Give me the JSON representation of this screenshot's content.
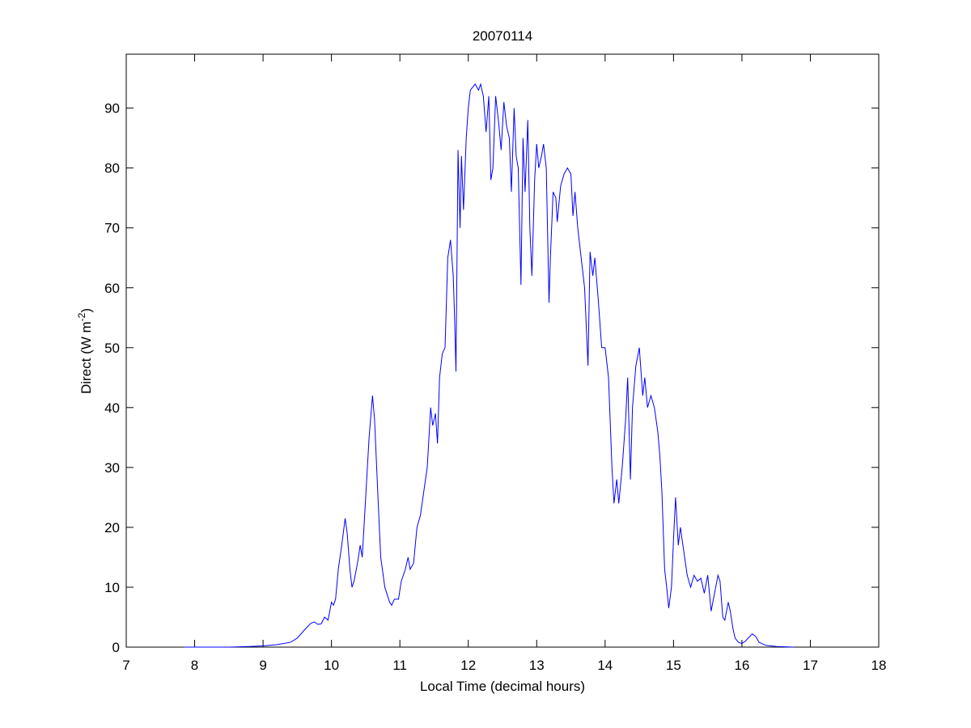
{
  "chart_data": {
    "type": "line",
    "title": "20070114",
    "xlabel": "Local Time (decimal hours)",
    "ylabel": {
      "text": "Direct (W m",
      "superscript": "-2",
      "suffix": ")"
    },
    "xlim": [
      7,
      18
    ],
    "xticks": [
      7,
      8,
      9,
      10,
      11,
      12,
      13,
      14,
      15,
      16,
      17,
      18
    ],
    "ylim": [
      0,
      99
    ],
    "yticks": [
      0,
      10,
      20,
      30,
      40,
      50,
      60,
      70,
      80,
      90
    ],
    "grid": false,
    "series": [
      {
        "color": "#0000ff",
        "x": [
          7.85,
          8.0,
          8.5,
          8.8,
          9.0,
          9.2,
          9.4,
          9.5,
          9.6,
          9.7,
          9.75,
          9.8,
          9.85,
          9.9,
          9.95,
          10.0,
          10.03,
          10.06,
          10.1,
          10.15,
          10.2,
          10.23,
          10.27,
          10.3,
          10.33,
          10.38,
          10.42,
          10.45,
          10.5,
          10.55,
          10.6,
          10.63,
          10.68,
          10.72,
          10.78,
          10.85,
          10.88,
          10.92,
          10.98,
          11.02,
          11.08,
          11.12,
          11.15,
          11.2,
          11.25,
          11.3,
          11.35,
          11.4,
          11.45,
          11.48,
          11.52,
          11.55,
          11.58,
          11.62,
          11.66,
          11.7,
          11.74,
          11.78,
          11.8,
          11.82,
          11.85,
          11.88,
          11.9,
          11.93,
          11.97,
          12.0,
          12.03,
          12.1,
          12.15,
          12.18,
          12.22,
          12.26,
          12.3,
          12.33,
          12.36,
          12.4,
          12.44,
          12.48,
          12.52,
          12.56,
          12.6,
          12.63,
          12.67,
          12.7,
          12.73,
          12.77,
          12.8,
          12.83,
          12.87,
          12.9,
          12.93,
          12.97,
          13.0,
          13.03,
          13.07,
          13.1,
          13.14,
          13.18,
          13.2,
          13.24,
          13.28,
          13.3,
          13.35,
          13.4,
          13.45,
          13.5,
          13.53,
          13.56,
          13.6,
          13.65,
          13.7,
          13.75,
          13.78,
          13.82,
          13.85,
          13.9,
          13.95,
          14.0,
          14.05,
          14.1,
          14.13,
          14.17,
          14.2,
          14.25,
          14.3,
          14.33,
          14.37,
          14.4,
          14.45,
          14.5,
          14.55,
          14.58,
          14.62,
          14.67,
          14.72,
          14.77,
          14.8,
          14.83,
          14.87,
          14.9,
          14.93,
          14.97,
          15.0,
          15.03,
          15.07,
          15.1,
          15.15,
          15.2,
          15.25,
          15.3,
          15.35,
          15.4,
          15.45,
          15.5,
          15.55,
          15.6,
          15.65,
          15.68,
          15.72,
          15.75,
          15.8,
          15.83,
          15.87,
          15.9,
          15.95,
          16.0,
          16.05,
          16.1,
          16.15,
          16.2,
          16.25,
          16.35,
          16.5,
          16.75
        ],
        "values": [
          0,
          0,
          0,
          0.1,
          0.2,
          0.4,
          0.8,
          1.5,
          2.8,
          4.0,
          4.2,
          3.8,
          3.9,
          5.0,
          4.5,
          7.5,
          7.0,
          8.0,
          13,
          17,
          21.5,
          19,
          13,
          10,
          11,
          14,
          17,
          15,
          25,
          35,
          42,
          38,
          25,
          15,
          10,
          7.5,
          7,
          8,
          8,
          11,
          13,
          15,
          13,
          14,
          20,
          22,
          26,
          30,
          40,
          37,
          39,
          34,
          45,
          49,
          50,
          65,
          68,
          62,
          55,
          46,
          83,
          70,
          82,
          73,
          85,
          90,
          93,
          94,
          93,
          94,
          92,
          86,
          92,
          78,
          80,
          92,
          88,
          83,
          91,
          87,
          85,
          76,
          90,
          82,
          80,
          60.5,
          85,
          76,
          88,
          70,
          62,
          78,
          84,
          80,
          82,
          84,
          80,
          57.5,
          65,
          76,
          75,
          71,
          77,
          79,
          80,
          79,
          72,
          76,
          70,
          65,
          60,
          47,
          66,
          62,
          65,
          58,
          50,
          50,
          45,
          30,
          24,
          28,
          24,
          30,
          38,
          45,
          28,
          40,
          47,
          50,
          42,
          45,
          40,
          42,
          40,
          36,
          32,
          26,
          13,
          10,
          6.5,
          10,
          18,
          25,
          17,
          20,
          16,
          12,
          10,
          12,
          11,
          11.5,
          9,
          12,
          6,
          9,
          12,
          11,
          5,
          4.5,
          7.5,
          6,
          3,
          1.5,
          0.8,
          0.6,
          1.0,
          1.6,
          2.2,
          1.8,
          0.8,
          0.3,
          0.1,
          0
        ]
      }
    ]
  }
}
